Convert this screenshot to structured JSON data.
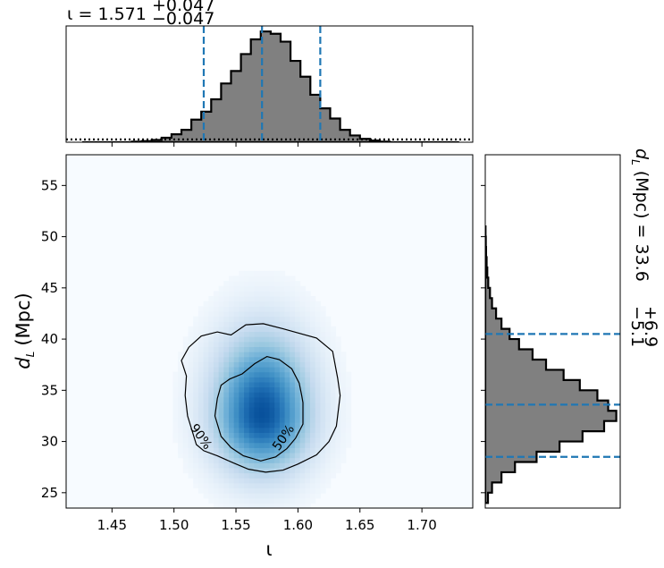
{
  "figure": {
    "top_title": {
      "param": "ι",
      "median": "1.571",
      "upper": "+0.047",
      "lower": "−0.047"
    },
    "right_title": {
      "param": "d",
      "param_sub": "L",
      "unit": "(Mpc)",
      "median": "33.6",
      "upper": "+6.9",
      "lower": "−5.1"
    },
    "xlabel": "ι",
    "ylabel": {
      "main": "d",
      "sub": "L",
      "unit": "(Mpc)"
    }
  },
  "chart_data": [
    {
      "type": "heatmap",
      "panel": "joint",
      "x_param": "ι",
      "y_param": "d_L (Mpc)",
      "xlim": [
        1.413,
        1.741
      ],
      "ylim": [
        23.5,
        58.0
      ],
      "x_ticks": [
        1.45,
        1.5,
        1.55,
        1.6,
        1.65,
        1.7
      ],
      "x_tick_labels": [
        "1.45",
        "1.50",
        "1.55",
        "1.60",
        "1.65",
        "1.70"
      ],
      "y_ticks": [
        25,
        30,
        35,
        40,
        45,
        50,
        55
      ],
      "y_tick_labels": [
        "25",
        "30",
        "35",
        "40",
        "45",
        "50",
        "55"
      ],
      "colormap": "Blues",
      "density_peak": {
        "x": 1.571,
        "y": 32.7
      },
      "contours": [
        {
          "label": "50%",
          "points": [
            [
              1.533,
              32.5
            ],
            [
              1.535,
              34.2
            ],
            [
              1.538,
              35.5
            ],
            [
              1.545,
              36.1
            ],
            [
              1.555,
              36.6
            ],
            [
              1.565,
              37.6
            ],
            [
              1.575,
              38.3
            ],
            [
              1.585,
              38.0
            ],
            [
              1.595,
              37.1
            ],
            [
              1.601,
              35.7
            ],
            [
              1.603,
              34.5
            ],
            [
              1.604,
              33.8
            ],
            [
              1.604,
              31.7
            ],
            [
              1.598,
              30.3
            ],
            [
              1.591,
              29.3
            ],
            [
              1.582,
              28.5
            ],
            [
              1.57,
              28.1
            ],
            [
              1.556,
              28.6
            ],
            [
              1.546,
              29.4
            ],
            [
              1.538,
              30.5
            ]
          ]
        },
        {
          "label": "90%",
          "points": [
            [
              1.518,
              29.7
            ],
            [
              1.511,
              32.5
            ],
            [
              1.509,
              34.5
            ],
            [
              1.51,
              36.4
            ],
            [
              1.506,
              37.9
            ],
            [
              1.512,
              39.2
            ],
            [
              1.522,
              40.3
            ],
            [
              1.535,
              40.7
            ],
            [
              1.546,
              40.4
            ],
            [
              1.558,
              41.4
            ],
            [
              1.572,
              41.5
            ],
            [
              1.588,
              41.0
            ],
            [
              1.6,
              40.6
            ],
            [
              1.615,
              40.1
            ],
            [
              1.628,
              38.8
            ],
            [
              1.632,
              36.2
            ],
            [
              1.634,
              34.5
            ],
            [
              1.631,
              31.5
            ],
            [
              1.625,
              30.0
            ],
            [
              1.615,
              28.7
            ],
            [
              1.6,
              27.8
            ],
            [
              1.588,
              27.2
            ],
            [
              1.574,
              27.0
            ],
            [
              1.56,
              27.3
            ],
            [
              1.548,
              27.9
            ],
            [
              1.535,
              28.6
            ],
            [
              1.524,
              29.1
            ]
          ]
        }
      ],
      "contour_labels": [
        {
          "text": "90%",
          "x": 1.522,
          "y": 30.5,
          "angle": 55
        },
        {
          "text": "50%",
          "x": 1.588,
          "y": 30.4,
          "angle": -55
        }
      ]
    },
    {
      "type": "bar",
      "panel": "marginal-top",
      "histtype": "step-filled",
      "x_param": "ι",
      "bin_edges": [
        1.426,
        1.434,
        1.442,
        1.45,
        1.458,
        1.466,
        1.474,
        1.482,
        1.49,
        1.498,
        1.506,
        1.514,
        1.522,
        1.53,
        1.538,
        1.546,
        1.554,
        1.562,
        1.57,
        1.578,
        1.586,
        1.594,
        1.602,
        1.61,
        1.618,
        1.626,
        1.634,
        1.642,
        1.65,
        1.658,
        1.666,
        1.674,
        1.682,
        1.69,
        1.698,
        1.706,
        1.714,
        1.722,
        1.73
      ],
      "values": [
        0,
        0,
        0,
        0,
        0,
        0.005,
        0.01,
        0.02,
        0.04,
        0.07,
        0.11,
        0.2,
        0.27,
        0.38,
        0.52,
        0.63,
        0.78,
        0.91,
        0.98,
        0.96,
        0.89,
        0.72,
        0.58,
        0.42,
        0.3,
        0.21,
        0.11,
        0.06,
        0.03,
        0.015,
        0.005,
        0,
        0,
        0,
        0,
        0,
        0,
        0
      ],
      "prior_level": 0.025,
      "quantiles": [
        1.524,
        1.571,
        1.618
      ],
      "line_color": "#000000",
      "fill_color": "#808080",
      "quantile_color": "#1f77b4"
    },
    {
      "type": "bar",
      "panel": "marginal-right",
      "orientation": "horizontal",
      "histtype": "step-filled",
      "y_param": "d_L (Mpc)",
      "bin_edges": [
        24.0,
        25.0,
        26.0,
        27.0,
        28.0,
        29.0,
        30.0,
        31.0,
        32.0,
        33.0,
        34.0,
        35.0,
        36.0,
        37.0,
        38.0,
        39.0,
        40.0,
        41.0,
        42.0,
        43.0,
        44.0,
        45.0,
        46.0,
        47.0,
        48.0,
        49.0,
        50.0,
        51.0
      ],
      "values": [
        0.02,
        0.05,
        0.12,
        0.22,
        0.38,
        0.55,
        0.72,
        0.88,
        0.97,
        0.91,
        0.83,
        0.7,
        0.58,
        0.45,
        0.35,
        0.25,
        0.18,
        0.12,
        0.08,
        0.05,
        0.035,
        0.022,
        0.015,
        0.01,
        0.006,
        0.004,
        0.002
      ],
      "quantiles": [
        28.5,
        33.6,
        40.5
      ],
      "line_color": "#000000",
      "fill_color": "#808080",
      "quantile_color": "#1f77b4"
    }
  ]
}
